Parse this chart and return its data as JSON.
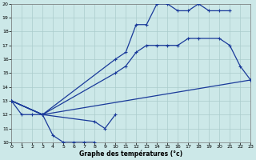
{
  "xlabel": "Graphe des températures (°c)",
  "bg_color": "#cce8e8",
  "line_color": "#1a3a9a",
  "grid_color": "#aacccc",
  "xlim": [
    0,
    23
  ],
  "ylim": [
    10,
    20
  ],
  "xticks": [
    0,
    1,
    2,
    3,
    4,
    5,
    6,
    7,
    8,
    9,
    10,
    11,
    12,
    13,
    14,
    15,
    16,
    17,
    18,
    19,
    20,
    21,
    22,
    23
  ],
  "yticks": [
    10,
    11,
    12,
    13,
    14,
    15,
    16,
    17,
    18,
    19,
    20
  ],
  "lines": [
    {
      "x": [
        0,
        1,
        2,
        3,
        4,
        5,
        6,
        7,
        8,
        9
      ],
      "y": [
        13,
        12,
        12,
        12,
        10.5,
        10,
        10,
        10,
        10,
        null
      ]
    },
    {
      "x": [
        0,
        3,
        8,
        9,
        10
      ],
      "y": [
        13,
        12,
        11.5,
        11,
        12
      ]
    },
    {
      "x": [
        0,
        3,
        10,
        11,
        12,
        13,
        14,
        15,
        16,
        17,
        18,
        19,
        20,
        21
      ],
      "y": [
        13,
        12,
        16,
        16.5,
        18.5,
        18.5,
        20,
        20,
        19.5,
        19.5,
        20,
        19.5,
        19.5,
        19.5
      ]
    },
    {
      "x": [
        0,
        3,
        10,
        11,
        12,
        13,
        14,
        15,
        16,
        17,
        18,
        20,
        21,
        22,
        23
      ],
      "y": [
        13,
        12,
        15,
        15.5,
        16.5,
        17,
        17,
        17,
        17,
        17.5,
        17.5,
        17.5,
        17,
        15.5,
        14.5
      ]
    },
    {
      "x": [
        0,
        3,
        23
      ],
      "y": [
        13,
        12,
        14.5
      ]
    }
  ]
}
